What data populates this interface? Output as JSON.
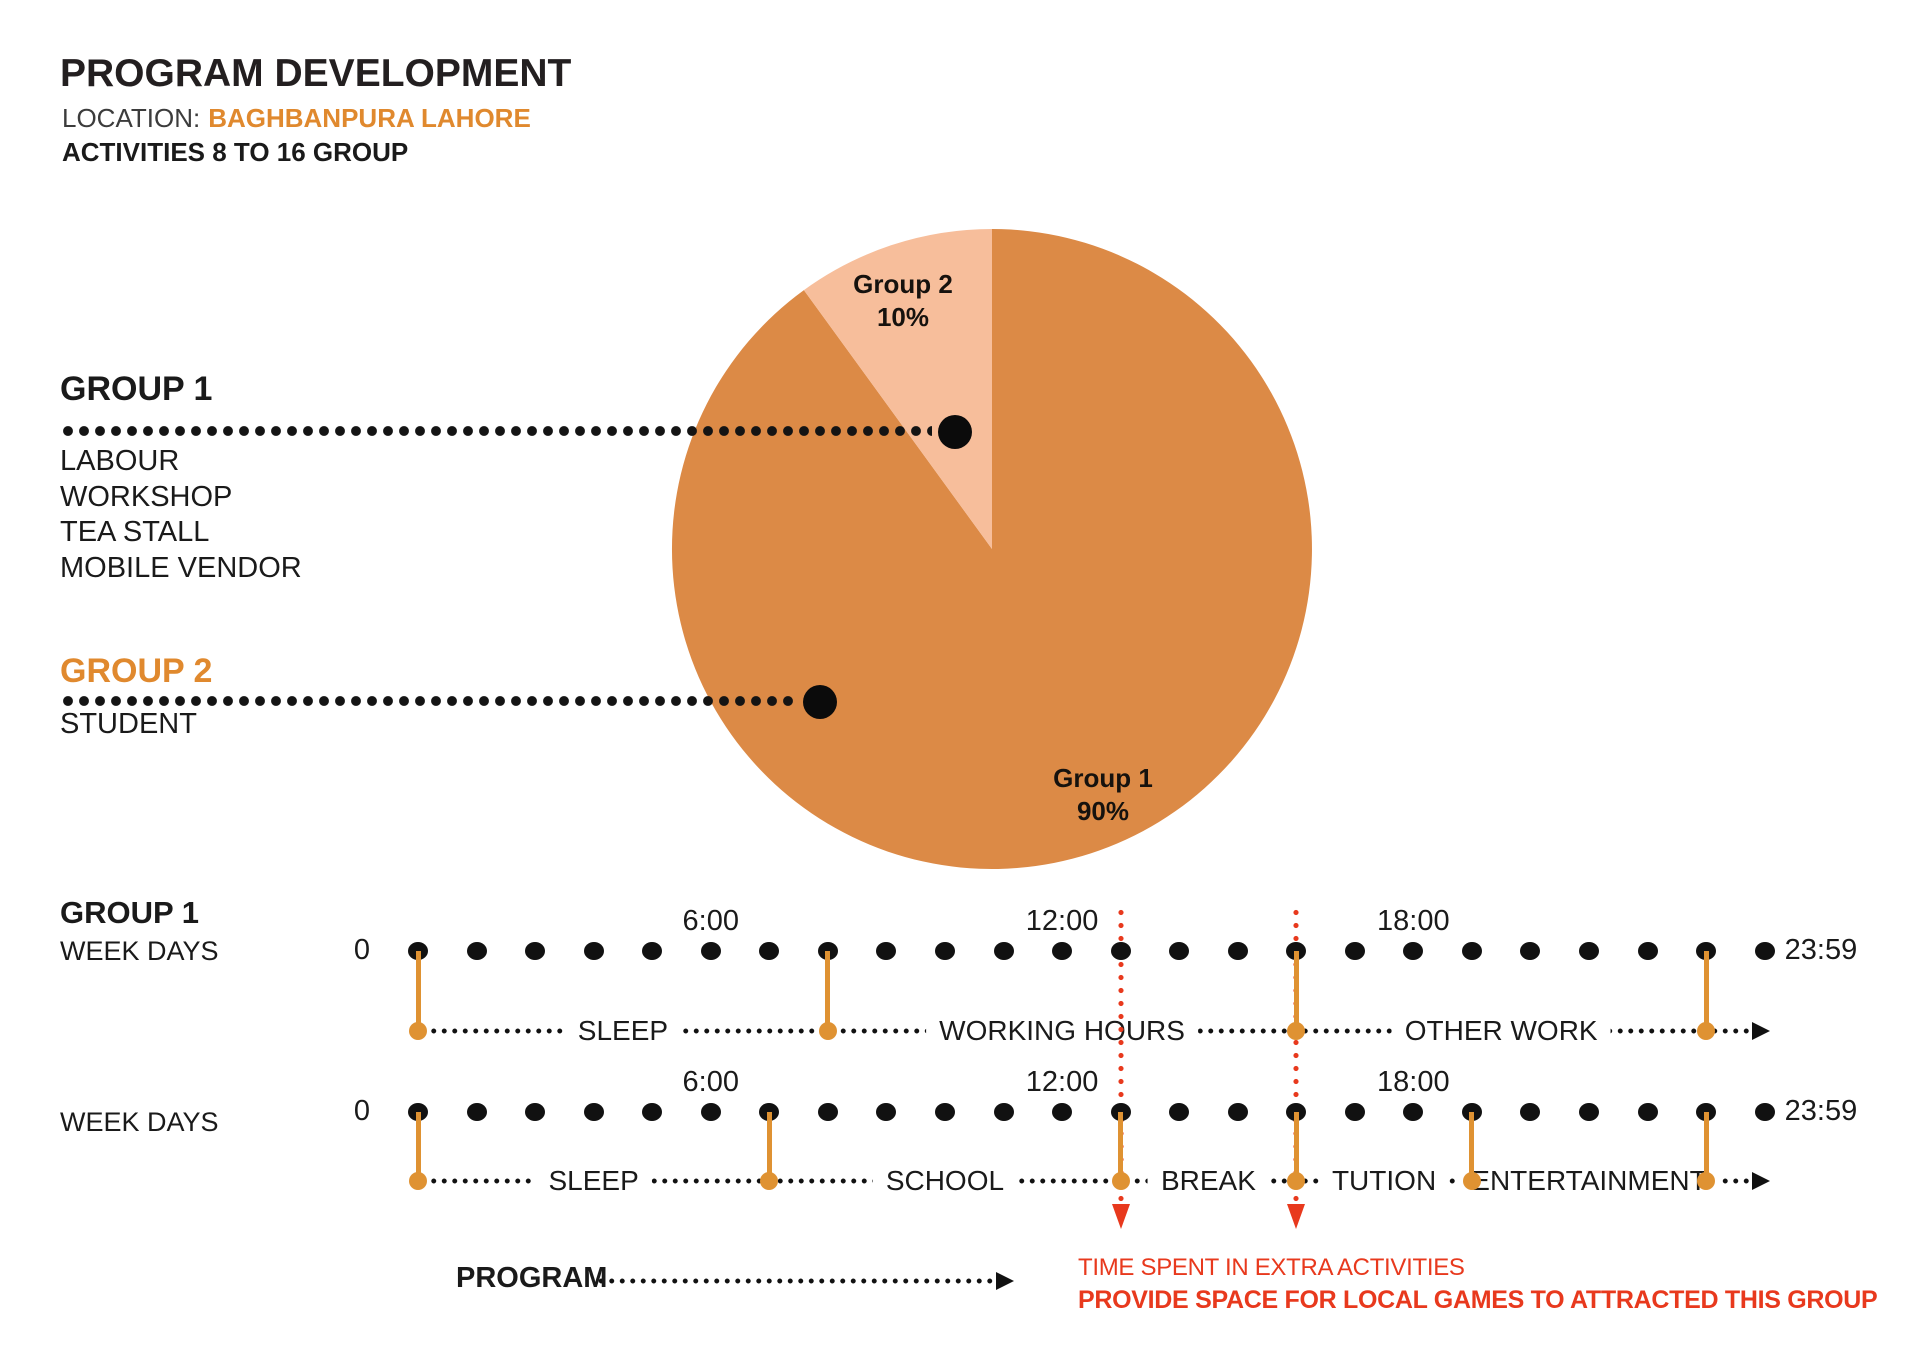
{
  "page": {
    "title": "PROGRAM DEVELOPMENT",
    "location_label": "LOCATION:",
    "location_value": "BAGHBANPURA LAHORE",
    "subtitle": "ACTIVITIES 8 TO 16 GROUP"
  },
  "colors": {
    "ink": "#1a1a1a",
    "accent_orange": "#e0892e",
    "pie_orange": "#dc8a46",
    "pie_pink": "#f7be9b",
    "divider_orange": "#df9232",
    "alert_red": "#e8391d"
  },
  "chart_data": {
    "type": "pie",
    "title": "",
    "slices": [
      {
        "label": "Group 1",
        "value": 90,
        "display": "90%",
        "color": "#dc8a46"
      },
      {
        "label": "Group 2",
        "value": 10,
        "display": "10%",
        "color": "#f7be9b"
      }
    ],
    "legend_position": "left",
    "start_angle_deg": -90,
    "direction": "clockwise"
  },
  "legend": {
    "group1": {
      "heading": "GROUP 1",
      "items": [
        "LABOUR",
        "WORKSHOP",
        "TEA STALL",
        "MOBILE VENDOR"
      ]
    },
    "group2": {
      "heading": "GROUP 2",
      "items": [
        "STUDENT"
      ]
    }
  },
  "timelines": {
    "axis": {
      "start_label": "0",
      "end_label": "23:59",
      "hours": 24,
      "time_labels": [
        {
          "text": "6:00",
          "hour": 6
        },
        {
          "text": "12:00",
          "hour": 12
        },
        {
          "text": "18:00",
          "hour": 18
        }
      ]
    },
    "rows": [
      {
        "heading": "GROUP 1",
        "subheading": "WEEK DAYS",
        "segments": [
          {
            "label": "SLEEP",
            "from": 0,
            "to": 7
          },
          {
            "label": "WORKING HOURS",
            "from": 7,
            "to": 15
          },
          {
            "label": "OTHER WORK",
            "from": 15,
            "to": 22
          }
        ]
      },
      {
        "heading": "",
        "subheading": "WEEK DAYS",
        "segments": [
          {
            "label": "SLEEP",
            "from": 0,
            "to": 6
          },
          {
            "label": "SCHOOL",
            "from": 6,
            "to": 12
          },
          {
            "label": "BREAK",
            "from": 12,
            "to": 15
          },
          {
            "label": "TUTION",
            "from": 15,
            "to": 18
          },
          {
            "label": "ENTERTAINMENT",
            "from": 18,
            "to": 22
          }
        ]
      }
    ],
    "markers": {
      "hours": [
        12,
        15
      ]
    }
  },
  "program": {
    "label": "PROGRAM",
    "note_line1": "TIME SPENT IN EXTRA ACTIVITIES",
    "note_line2": "PROVIDE SPACE FOR LOCAL GAMES TO ATTRACTED THIS GROUP"
  }
}
